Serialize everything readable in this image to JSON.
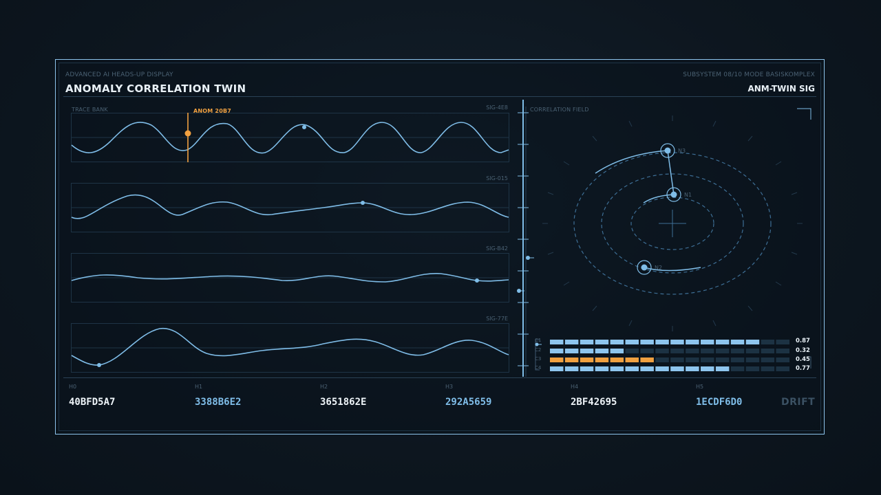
{
  "header": {
    "kicker": "ADVANCED AI HEADS-UP DISPLAY",
    "title": "ANOMALY CORRELATION TWIN",
    "subsystem": "SUBSYSTEM 08/10  MODE BASISKOMPLEX",
    "id": "ANM-TWIN SIG"
  },
  "trace_bank": {
    "label": "TRACE BANK",
    "anomaly_marker": "ANOM 20B7",
    "traces": [
      {
        "id": "SIG-4E8"
      },
      {
        "id": "SIG-015"
      },
      {
        "id": "SIG-B42"
      },
      {
        "id": "SIG-77E"
      }
    ]
  },
  "correlation_field": {
    "label": "CORRELATION FIELD",
    "nodes": [
      "N3",
      "N1",
      "N2"
    ]
  },
  "channels": [
    {
      "label": "C1",
      "value": "0.87",
      "fill": 0.87,
      "color": "#8ec5ee"
    },
    {
      "label": "C2",
      "value": "0.32",
      "fill": 0.32,
      "color": "#8ec5ee"
    },
    {
      "label": "C3",
      "value": "0.45",
      "fill": 0.45,
      "color": "#f0a040"
    },
    {
      "label": "C4",
      "value": "0.77",
      "fill": 0.77,
      "color": "#8ec5ee"
    }
  ],
  "hashes": [
    {
      "label": "H0",
      "value": "40BFD5A7",
      "color": "#eef4f8"
    },
    {
      "label": "H1",
      "value": "3388B6E2",
      "color": "#7fbde8"
    },
    {
      "label": "H2",
      "value": "3651862E",
      "color": "#eef4f8"
    },
    {
      "label": "H3",
      "value": "292A5659",
      "color": "#7fbde8"
    },
    {
      "label": "H4",
      "value": "2BF42695",
      "color": "#eef4f8"
    },
    {
      "label": "H5",
      "value": "1ECDF6D0",
      "color": "#7fbde8"
    }
  ],
  "status": "DRIFT",
  "colors": {
    "accent": "#8ec5ee",
    "anomaly": "#f0a040",
    "panel_line": "#1e3446"
  }
}
